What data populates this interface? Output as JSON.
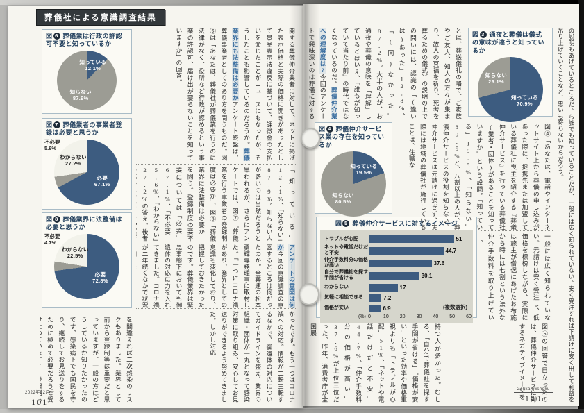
{
  "header": {
    "badge": "葬儀社による意識調査結果"
  },
  "footer_left": {
    "issue": "2022年12月号",
    "page": "101"
  },
  "footer_right": {
    "magazine": "Gekkanjushoku",
    "page": "100"
  },
  "colors": {
    "navy": "#3d5c80",
    "slice_gray": "#9c9c94",
    "slice_white": "#f2f2ea",
    "accent_blue": "#3c6fa0"
  },
  "chart_data": [
    {
      "id": "fig6",
      "type": "pie",
      "fig_label": "図",
      "fig_num": "6",
      "title": "葬儀業は行政の許認可不要と知っているか",
      "slices": [
        {
          "label": "知っている",
          "pct": "12.1%",
          "value": 12.1,
          "color": "#3d5c80",
          "text": "#ffffff"
        },
        {
          "label": "知らない",
          "pct": "87.9%",
          "value": 87.9,
          "color": "#9c9c94",
          "text": "#ffffff"
        }
      ]
    },
    {
      "id": "fig7",
      "type": "pie",
      "fig_label": "図",
      "fig_num": "7",
      "title": "葬儀業者の事業者登録は必要と思うか",
      "slices": [
        {
          "label": "必要",
          "pct": "67.1%",
          "value": 67.1,
          "color": "#3d5c80",
          "text": "#ffffff"
        },
        {
          "label": "不必要",
          "pct": "5.6%",
          "value": 5.6,
          "color": "#9c9c94",
          "text": "#222222",
          "outside": true
        },
        {
          "label": "わからない",
          "pct": "27.2%",
          "value": 27.2,
          "color": "#f2f2ea",
          "text": "#222222"
        }
      ]
    },
    {
      "id": "fig8",
      "type": "pie",
      "fig_label": "図",
      "fig_num": "8",
      "title": "葬儀業界に法整備は必要と思うか",
      "slices": [
        {
          "label": "必要",
          "pct": "72.8%",
          "value": 72.8,
          "color": "#3d5c80",
          "text": "#ffffff"
        },
        {
          "label": "不必要",
          "pct": "4.7%",
          "value": 4.7,
          "color": "#9c9c94",
          "text": "#222222",
          "outside": true
        },
        {
          "label": "わからない",
          "pct": "22.5%",
          "value": 22.5,
          "color": "#f2f2ea",
          "text": "#222222"
        }
      ]
    },
    {
      "id": "fig3",
      "type": "pie",
      "fig_label": "図",
      "fig_num": "3",
      "title": "通夜と葬儀は儀式の意味が違うと知っているか",
      "slices": [
        {
          "label": "知っている",
          "pct": "70.9%",
          "value": 70.9,
          "color": "#3d5c80",
          "text": "#ffffff"
        },
        {
          "label": "知らない",
          "pct": "29.1%",
          "value": 29.1,
          "color": "#9c9c94",
          "text": "#ffffff"
        }
      ]
    },
    {
      "id": "fig4",
      "type": "pie",
      "fig_label": "図",
      "fig_num": "4",
      "title": "葬儀仲介サービス業の存在を知っているか",
      "slices": [
        {
          "label": "知っている",
          "pct": "19.5%",
          "value": 19.5,
          "color": "#3d5c80",
          "text": "#ffffff"
        },
        {
          "label": "知らない",
          "pct": "80.5%",
          "value": 80.5,
          "color": "#9c9c94",
          "text": "#ffffff"
        }
      ]
    },
    {
      "id": "fig5",
      "type": "bar",
      "fig_label": "図",
      "fig_num": "5",
      "title": "葬儀仲介サービスに対するイメージ",
      "categories": [
        "トラブルが心配",
        "ネットや電話だけだと不安",
        "仲介手数料分の価格が高い",
        "自分で葬儀社を探す手間が省ける",
        "わからない",
        "気軽に相談できる",
        "価格が安い"
      ],
      "values": [
        51,
        44.7,
        37.6,
        30.1,
        17,
        7.2,
        6.9
      ],
      "value_labels": [
        "51",
        "44.7",
        "37.6",
        "30.1",
        "17",
        "7.2",
        "6.9"
      ],
      "xlim": [
        0,
        60
      ],
      "ticks": [
        "0",
        "10",
        "20",
        "30",
        "40",
        "50",
        "60"
      ],
      "axis_unit": "(%)",
      "note": "(複数選択)"
    }
  ],
  "left_page": {
    "band1a": "開する葬儀仲介業者に対して、ネットに掲げた表示価格と実際の価格に開きがあったとして景品表示法違反に基づいて、課徴金の支払いを命じたことがニュースにもなったが、そうしたことも影響しているのだろうか。",
    "heading1": "葬儀業界にも法整備は必要か",
    "band1b": "アンケート終盤は、葬儀事業者としてのあり方を問うものだ。図⑥は「あなたは、葬儀社が葬儀業を行うのに法律がなく、役所など行政が認めるという事業の許認可、届け出が要らないことを知っていますか」の回答。",
    "band2": "「知っている」12.1%、「知らない」87.9%。知らない人が多いのは当然だろうと思われるが、さらにアンケートでは、図⑦「葬儀業を行う事業者の登録制度は必要か」、図⑧「葬儀業界に法整備は必要か」を問う。登録制度の要不要については「必要」67.1%、「不必要」5.6%、「わからない」27.2%の答え。後者の業界については「必要」72.8%、「不必要」4.7%、「わからない」22.5%。七割前後が、葬儀業界にも登録制度や法整備が必要と考えていることがわかる。",
    "heading3": "アンケートの意図は何か",
    "band3": "今回の意識調査の意図するところは何だったのか。全葬連の松本勇輝専務理事に取材した。「一つにコロナ禍があり、業界としての意識も変化しており、把握しておきたかったのです。葬儀業界は緊急事態下においても御遺体の対応に力を入れてきました。コロナ禍が二年続くなかで状況も知りた",
    "band4": "かったです。もう一つはコロナ禍への対応。情報が二転三転するなかで、御遺体の対応についてガイドラインを整え、業界の組織・団体が一丸となって感染対策に取り組み、安心してお見送りができるよう努めてきました。しかし対応",
    "band_bottom": "を間違えれば二次感染のリスクもありました。業界として前から登録制等は重要だと思っていますが、一般の方はどうしているか知りたかったのです。感染病下でも国民を守り、継続してお見送りをするために極めて必要だろうと受け止めています」 登録制も法整備も既存の葬儀社にも負担が生じそうではあるが、今後の具体化が注目される。"
  },
  "right_page": {
    "band1a": "とは、葬送儀礼の略で、ご家族やご友人、知人の方々が集まり、故人の冥福を祈り、死者を葬るための儀式〉の説明の上での問いには、認識の「(違いは)あった」12.8%、「(同)なかった」87.2%。大半の人が、お通夜や葬儀の意味を「理解」し",
    "band1b": "ているとはいえ、「誰もが知っていて当たり前」の時代ではなくなっているのだ。",
    "heading1": "葬儀仲介業への理解度は?",
    "band1c": "今回のアンケートで興味深いのは葬儀に対する意識を聞くだけでなく、「葬儀業者」について",
    "band2": "図④「あなたは、電話やインターネットサイト上から葬儀の申し込みがあった際に、提携先または加盟している葬儀社に喪主を紹介する『葬儀仲介サービス』を行っている葬儀社(業者・団体)があることを知っていますか」という設問。「知っている」19.5%、「知らない」80.5%と、八割以上の人が、葬儀仲介サービスの役割を知らない。仲介サービスは元請けに過ぎず、実際には地域の葬儀社が施行していることは、住職な",
    "far_right": "の説明もあげているところだ。ら誰でも知っていることだが、一般には広く知られていない。安く受注すれば下請けに安く出して利益を吊り上げていくことなど、思いも寄らないからだろう。",
    "band3": "一般には広く知られていない。元請けは安く受注し、低価格を標榜しながら、実際には施主が僧侶にあげたお布施から時には七割という法外な仲介手数料を取り上げていく。",
    "band4": "図⑤の回答で目立ったのは、葬儀仲介サービスに対するネガティブイメージを",
    "band5": "持つ人が多かった。むしろ、「自分で葬儀社を探す手間が省ける」「価格が安い」といった効率や価格重視よりも「トラブルが心配」51%、「ネットや電話だけだと不安」44.7%、「仲介手数料分の価格が高い」37.6%が上位三位だった。昨年、消費者庁が全国展"
  }
}
